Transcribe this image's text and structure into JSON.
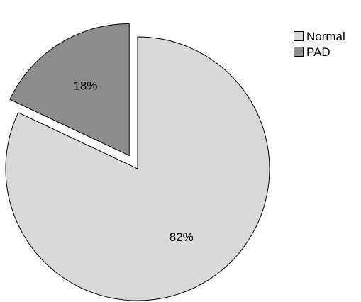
{
  "chart_data": {
    "type": "pie",
    "slices": [
      {
        "name": "Normal",
        "value": 82,
        "label": "82%",
        "color": "#d9d9d9",
        "exploded": false
      },
      {
        "name": "PAD",
        "value": 18,
        "label": "18%",
        "color": "#8c8c8c",
        "exploded": true
      }
    ],
    "start": "12 o'clock",
    "direction": "clockwise",
    "legend_position": "top-right",
    "title": ""
  },
  "legend": {
    "items": [
      {
        "label": "Normal",
        "color": "#d9d9d9"
      },
      {
        "label": "PAD",
        "color": "#8c8c8c"
      }
    ]
  }
}
